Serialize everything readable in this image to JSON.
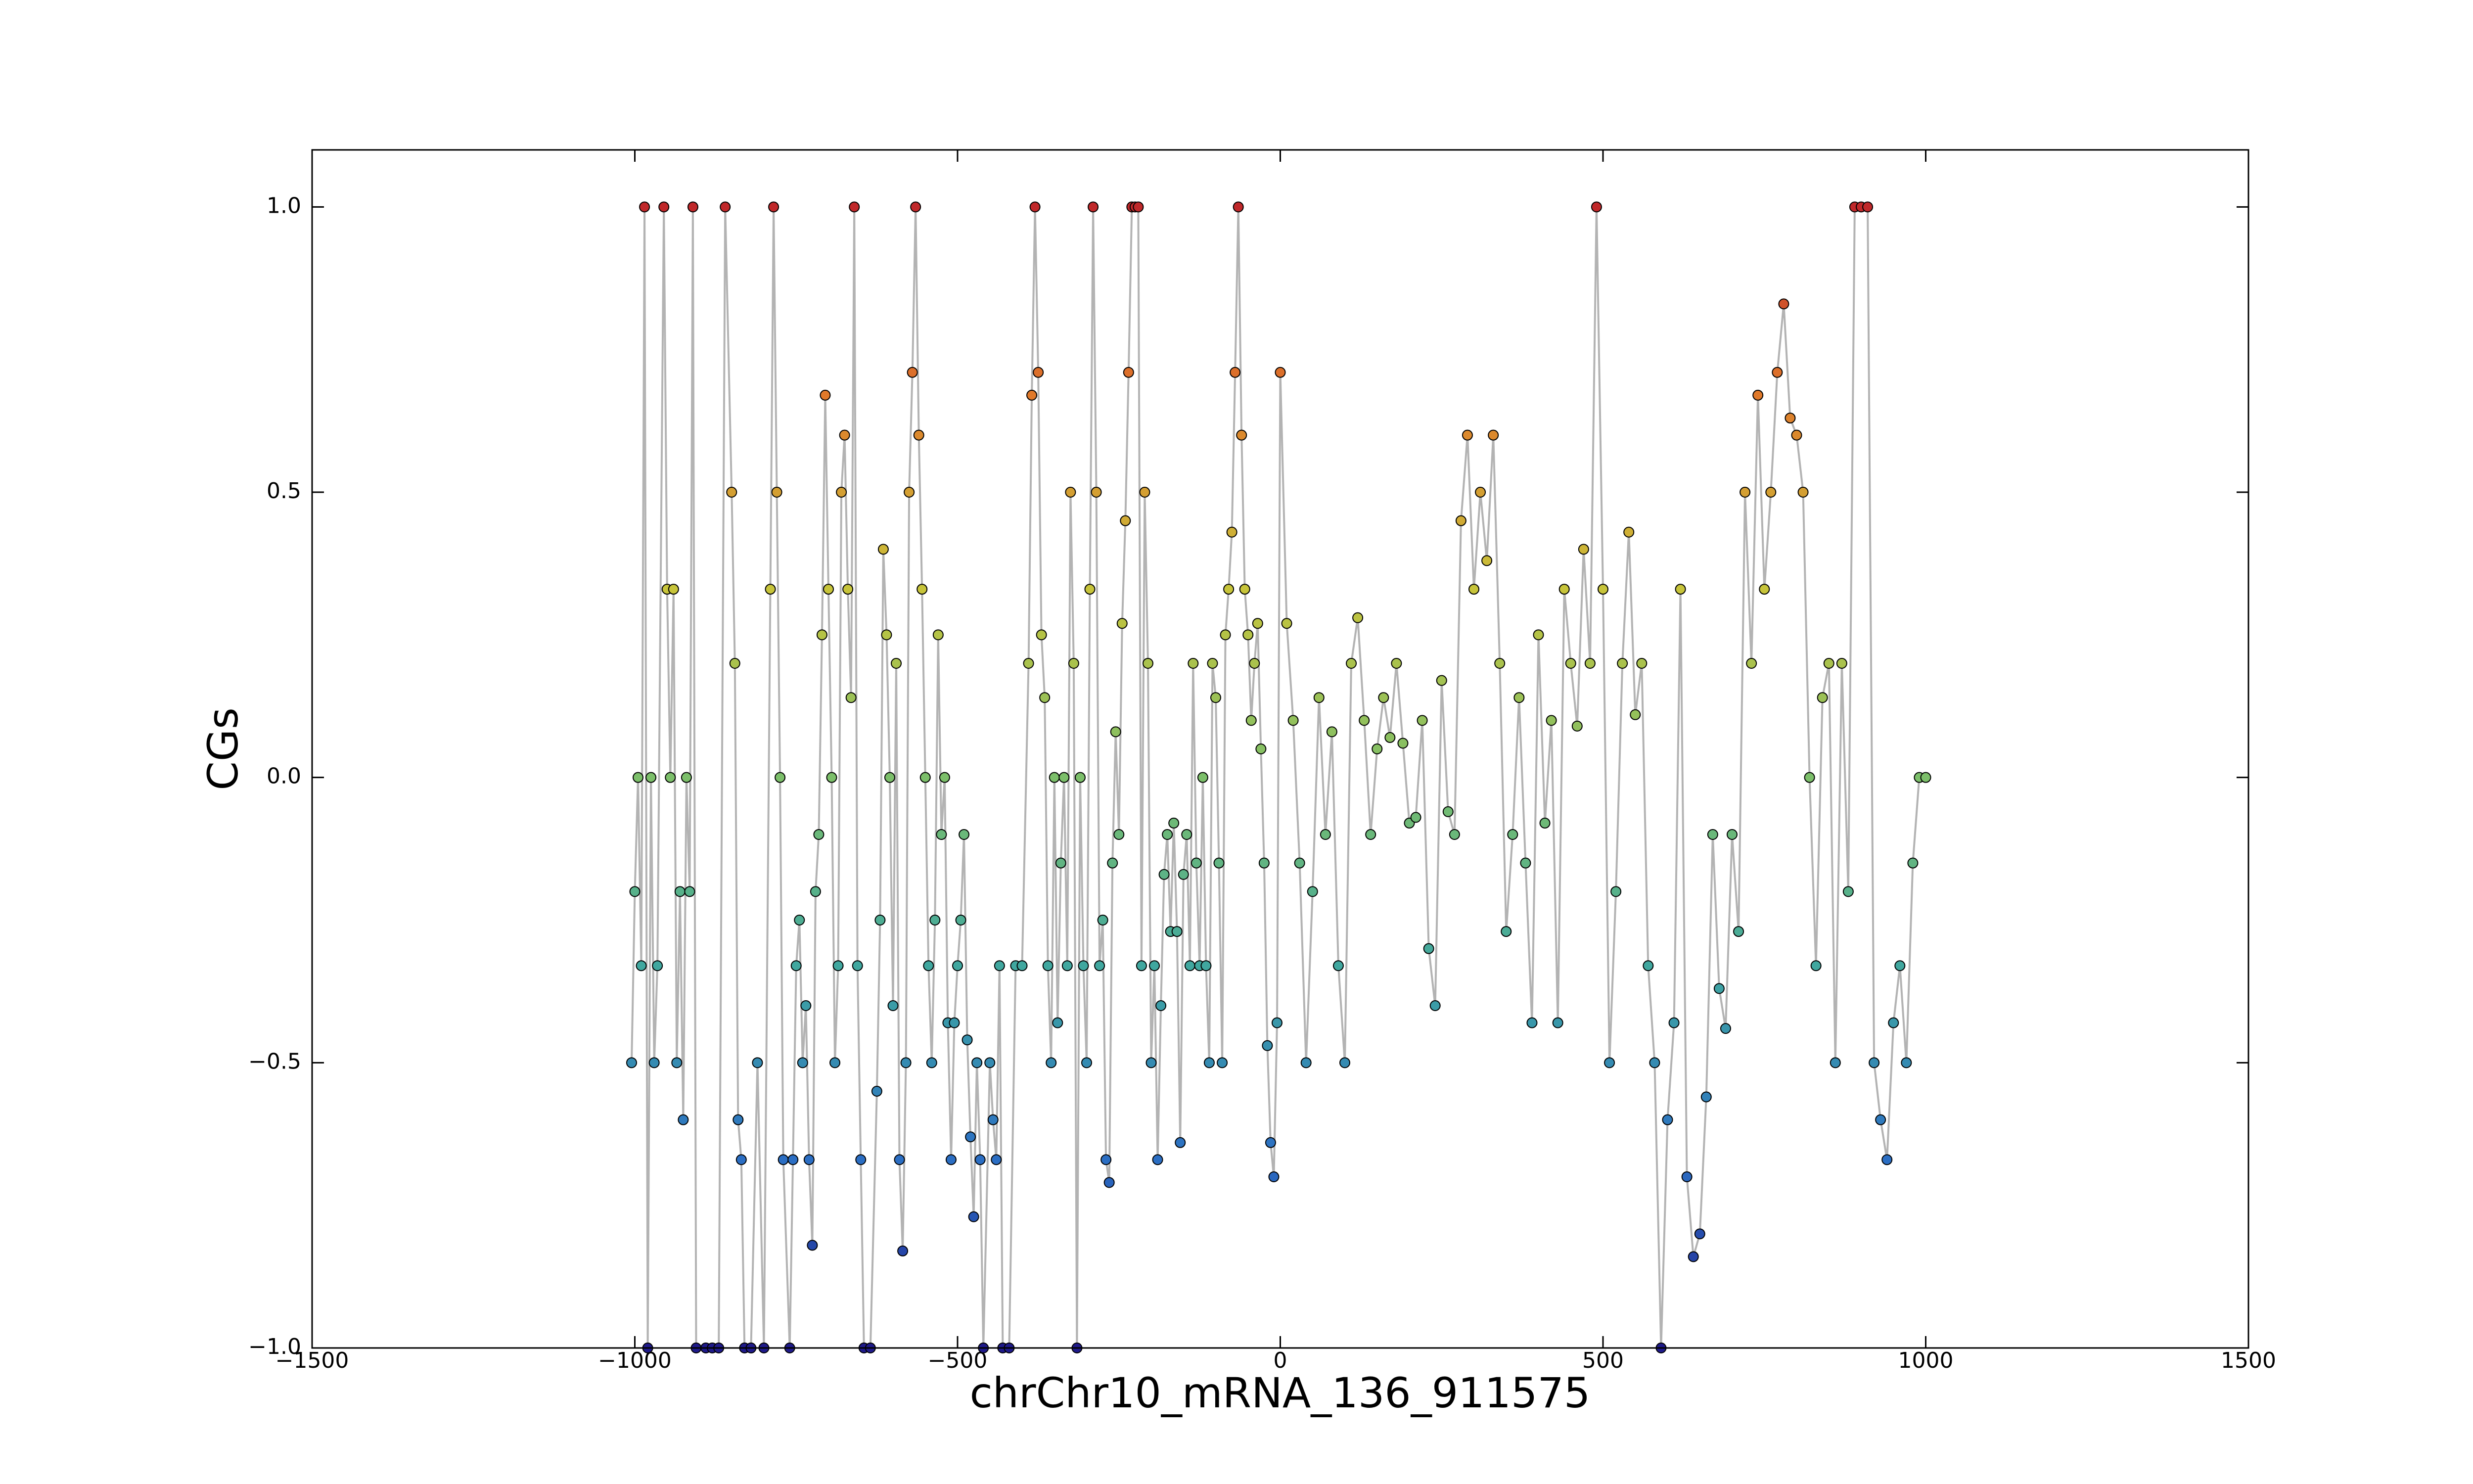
{
  "chart_data": {
    "type": "scatter-line",
    "x_label": "chrChr10_mRNA_136_911575",
    "y_label": "CGs",
    "xlim": [
      -1500,
      1500
    ],
    "ylim": [
      -1,
      1.1
    ],
    "xticks": [
      {
        "value": -1500,
        "label": "−1500"
      },
      {
        "value": -1000,
        "label": "−1000"
      },
      {
        "value": -500,
        "label": "−500"
      },
      0,
      500,
      1000,
      1500
    ],
    "yticks": [
      {
        "value": -1,
        "label": "−1.0"
      },
      {
        "value": -0.5,
        "label": "−0.5"
      },
      {
        "value": 0,
        "label": "0.0"
      },
      0.5,
      {
        "value": 1,
        "label": "1.0"
      }
    ],
    "grid": false,
    "line_color": "#b3b3b3",
    "colormap": [
      "#1f1a8a",
      "#2b6fc4",
      "#3fa7a0",
      "#7cbf6a",
      "#c8c43a",
      "#e07a2a",
      "#c0282a"
    ],
    "x": [
      -1005,
      -1000,
      -995,
      -990,
      -985,
      -980,
      -975,
      -970,
      -965,
      -955,
      -950,
      -945,
      -940,
      -935,
      -930,
      -925,
      -920,
      -915,
      -910,
      -905,
      -890,
      -880,
      -870,
      -860,
      -850,
      -845,
      -840,
      -835,
      -830,
      -820,
      -810,
      -800,
      -790,
      -785,
      -780,
      -775,
      -770,
      -760,
      -755,
      -750,
      -745,
      -740,
      -735,
      -730,
      -725,
      -720,
      -715,
      -710,
      -705,
      -700,
      -695,
      -690,
      -685,
      -680,
      -675,
      -670,
      -665,
      -660,
      -655,
      -650,
      -645,
      -635,
      -625,
      -620,
      -615,
      -610,
      -605,
      -600,
      -595,
      -590,
      -585,
      -580,
      -575,
      -570,
      -565,
      -560,
      -555,
      -550,
      -545,
      -540,
      -535,
      -530,
      -525,
      -520,
      -515,
      -510,
      -505,
      -500,
      -495,
      -490,
      -485,
      -480,
      -475,
      -470,
      -465,
      -460,
      -450,
      -445,
      -440,
      -435,
      -430,
      -420,
      -410,
      -400,
      -390,
      -385,
      -380,
      -375,
      -370,
      -365,
      -360,
      -355,
      -350,
      -345,
      -340,
      -335,
      -330,
      -325,
      -320,
      -315,
      -310,
      -305,
      -300,
      -295,
      -290,
      -285,
      -280,
      -275,
      -270,
      -265,
      -260,
      -255,
      -250,
      -245,
      -240,
      -235,
      -230,
      -225,
      -220,
      -215,
      -210,
      -205,
      -200,
      -195,
      -190,
      -185,
      -180,
      -175,
      -170,
      -165,
      -160,
      -155,
      -150,
      -145,
      -140,
      -135,
      -130,
      -125,
      -120,
      -115,
      -110,
      -105,
      -100,
      -95,
      -90,
      -85,
      -80,
      -75,
      -70,
      -65,
      -60,
      -55,
      -50,
      -45,
      -40,
      -35,
      -30,
      -25,
      -20,
      -15,
      -10,
      -5,
      0,
      10,
      20,
      30,
      40,
      50,
      60,
      70,
      80,
      90,
      100,
      110,
      120,
      130,
      140,
      150,
      160,
      170,
      180,
      190,
      200,
      210,
      220,
      230,
      240,
      250,
      260,
      270,
      280,
      290,
      300,
      310,
      320,
      330,
      340,
      350,
      360,
      370,
      380,
      390,
      400,
      410,
      420,
      430,
      440,
      450,
      460,
      470,
      480,
      490,
      500,
      510,
      520,
      530,
      540,
      550,
      560,
      570,
      580,
      590,
      600,
      610,
      620,
      630,
      640,
      650,
      660,
      670,
      680,
      690,
      700,
      710,
      720,
      730,
      740,
      750,
      760,
      770,
      780,
      790,
      800,
      810,
      820,
      830,
      840,
      850,
      860,
      870,
      880,
      890,
      900,
      910,
      920,
      930,
      940,
      950,
      960,
      970,
      980,
      990,
      1000
    ],
    "values": [
      -0.5,
      -0.2,
      0,
      -0.33,
      1,
      -1,
      0,
      -0.5,
      -0.33,
      1,
      0.33,
      0,
      0.33,
      -0.5,
      -0.2,
      -0.6,
      0,
      -0.2,
      1,
      -1,
      -1,
      -1,
      -1,
      1,
      0.5,
      0.2,
      -0.6,
      -0.67,
      -1,
      -1,
      -0.5,
      -1,
      0.33,
      1,
      0.5,
      0,
      -0.67,
      -1,
      -0.67,
      -0.33,
      -0.25,
      -0.5,
      -0.4,
      -0.67,
      -0.82,
      -0.2,
      -0.1,
      0.25,
      0.67,
      0.33,
      0,
      -0.5,
      -0.33,
      0.5,
      0.6,
      0.33,
      0.14,
      1,
      -0.33,
      -0.67,
      -1,
      -1,
      -0.55,
      -0.25,
      0.4,
      0.25,
      0,
      -0.4,
      0.2,
      -0.67,
      -0.83,
      -0.5,
      0.5,
      0.71,
      1,
      0.6,
      0.33,
      0,
      -0.33,
      -0.5,
      -0.25,
      0.25,
      -0.1,
      0,
      -0.43,
      -0.67,
      -0.43,
      -0.33,
      -0.25,
      -0.1,
      -0.46,
      -0.63,
      -0.77,
      -0.5,
      -0.67,
      -1,
      -0.5,
      -0.6,
      -0.67,
      -0.33,
      -1,
      -1,
      -0.33,
      -0.33,
      0.2,
      0.67,
      1,
      0.71,
      0.25,
      0.14,
      -0.33,
      -0.5,
      0,
      -0.43,
      -0.15,
      0,
      -0.33,
      0.5,
      0.2,
      -1,
      0,
      -0.33,
      -0.5,
      0.33,
      1,
      0.5,
      -0.33,
      -0.25,
      -0.67,
      -0.71,
      -0.15,
      0.08,
      -0.1,
      0.27,
      0.45,
      0.71,
      1,
      1,
      1,
      -0.33,
      0.5,
      0.2,
      -0.5,
      -0.33,
      -0.67,
      -0.4,
      -0.17,
      -0.1,
      -0.27,
      -0.08,
      -0.27,
      -0.64,
      -0.17,
      -0.1,
      -0.33,
      0.2,
      -0.15,
      -0.33,
      0,
      -0.33,
      -0.5,
      0.2,
      0.14,
      -0.15,
      -0.5,
      0.25,
      0.33,
      0.43,
      0.71,
      1,
      0.6,
      0.33,
      0.25,
      0.1,
      0.2,
      0.27,
      0.05,
      -0.15,
      -0.47,
      -0.64,
      -0.7,
      -0.43,
      0.71,
      0.27,
      0.1,
      -0.15,
      -0.5,
      -0.2,
      0.14,
      -0.1,
      0.08,
      -0.33,
      -0.5,
      0.2,
      0.28,
      0.1,
      -0.1,
      0.05,
      0.14,
      0.07,
      0.2,
      0.06,
      -0.08,
      -0.07,
      0.1,
      -0.3,
      -0.4,
      0.17,
      -0.06,
      -0.1,
      0.45,
      0.6,
      0.33,
      0.5,
      0.38,
      0.6,
      0.2,
      -0.27,
      -0.1,
      0.14,
      -0.15,
      -0.43,
      0.25,
      -0.08,
      0.1,
      -0.43,
      0.33,
      0.2,
      0.09,
      0.4,
      0.2,
      1,
      0.33,
      -0.5,
      -0.2,
      0.2,
      0.43,
      0.11,
      0.2,
      -0.33,
      -0.5,
      -1,
      -0.6,
      -0.43,
      0.33,
      -0.7,
      -0.84,
      -0.8,
      -0.56,
      -0.1,
      -0.37,
      -0.44,
      -0.1,
      -0.27,
      0.5,
      0.2,
      0.67,
      0.33,
      0.5,
      0.71,
      0.83,
      0.63,
      0.6,
      0.5,
      0,
      -0.33,
      0.14,
      0.2,
      -0.5,
      0.2,
      -0.2,
      1,
      1,
      1,
      -0.5,
      -0.6,
      -0.67,
      -0.43,
      -0.33,
      -0.5,
      -0.15,
      0,
      0
    ]
  }
}
